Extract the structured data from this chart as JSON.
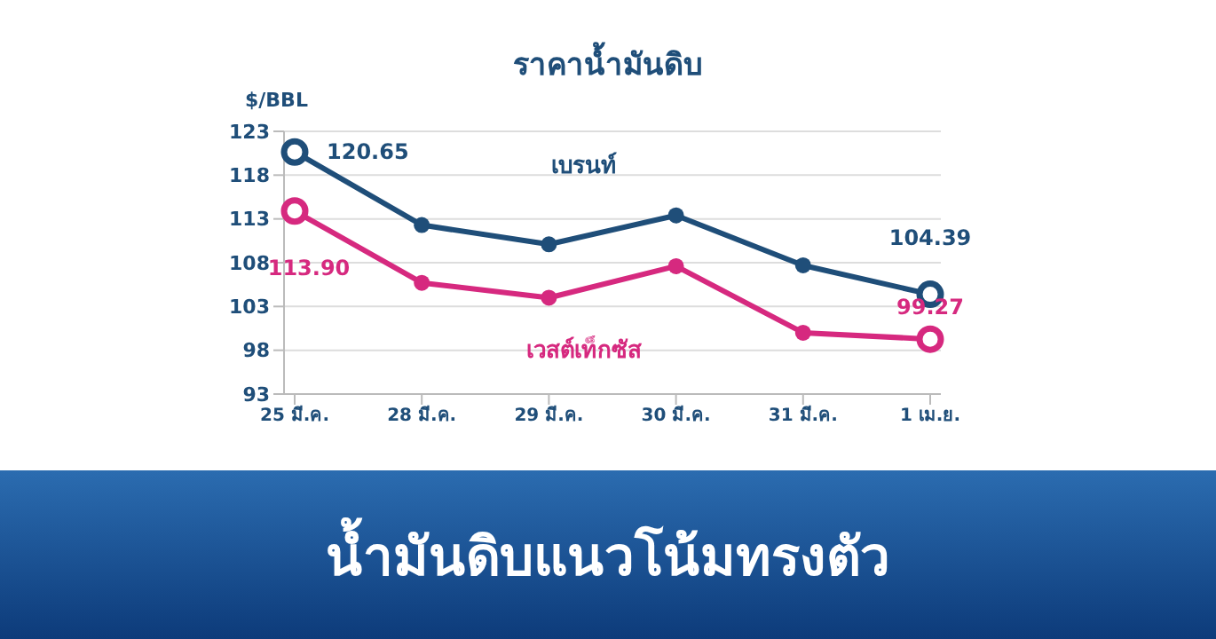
{
  "chart_data": {
    "type": "line",
    "title": "ราคาน้ำมันดิบ",
    "subtitle": "น้ำมันดิบแนวโน้มทรงตัว",
    "ylabel": "$/BBL",
    "categories": [
      "25 มี.ค.",
      "28 มี.ค.",
      "29 มี.ค.",
      "30 มี.ค.",
      "31 มี.ค.",
      "1 เม.ย."
    ],
    "series": [
      {
        "name": "เบรนท์",
        "color": "#1f4e79",
        "values": [
          120.65,
          112.3,
          110.1,
          113.4,
          107.7,
          104.39
        ],
        "value_labels": [
          "120.65",
          null,
          null,
          null,
          null,
          "104.39"
        ]
      },
      {
        "name": "เวสต์เท็กซัส",
        "color": "#d6297f",
        "values": [
          113.9,
          105.7,
          104.0,
          107.6,
          100.0,
          99.27
        ],
        "value_labels": [
          "113.90",
          null,
          null,
          null,
          null,
          "99.27"
        ]
      }
    ],
    "ylim": [
      93,
      123
    ],
    "yticks": [
      93,
      98,
      103,
      108,
      113,
      118,
      123
    ],
    "grid": "y",
    "marker": "circle",
    "line_style": "solid"
  }
}
